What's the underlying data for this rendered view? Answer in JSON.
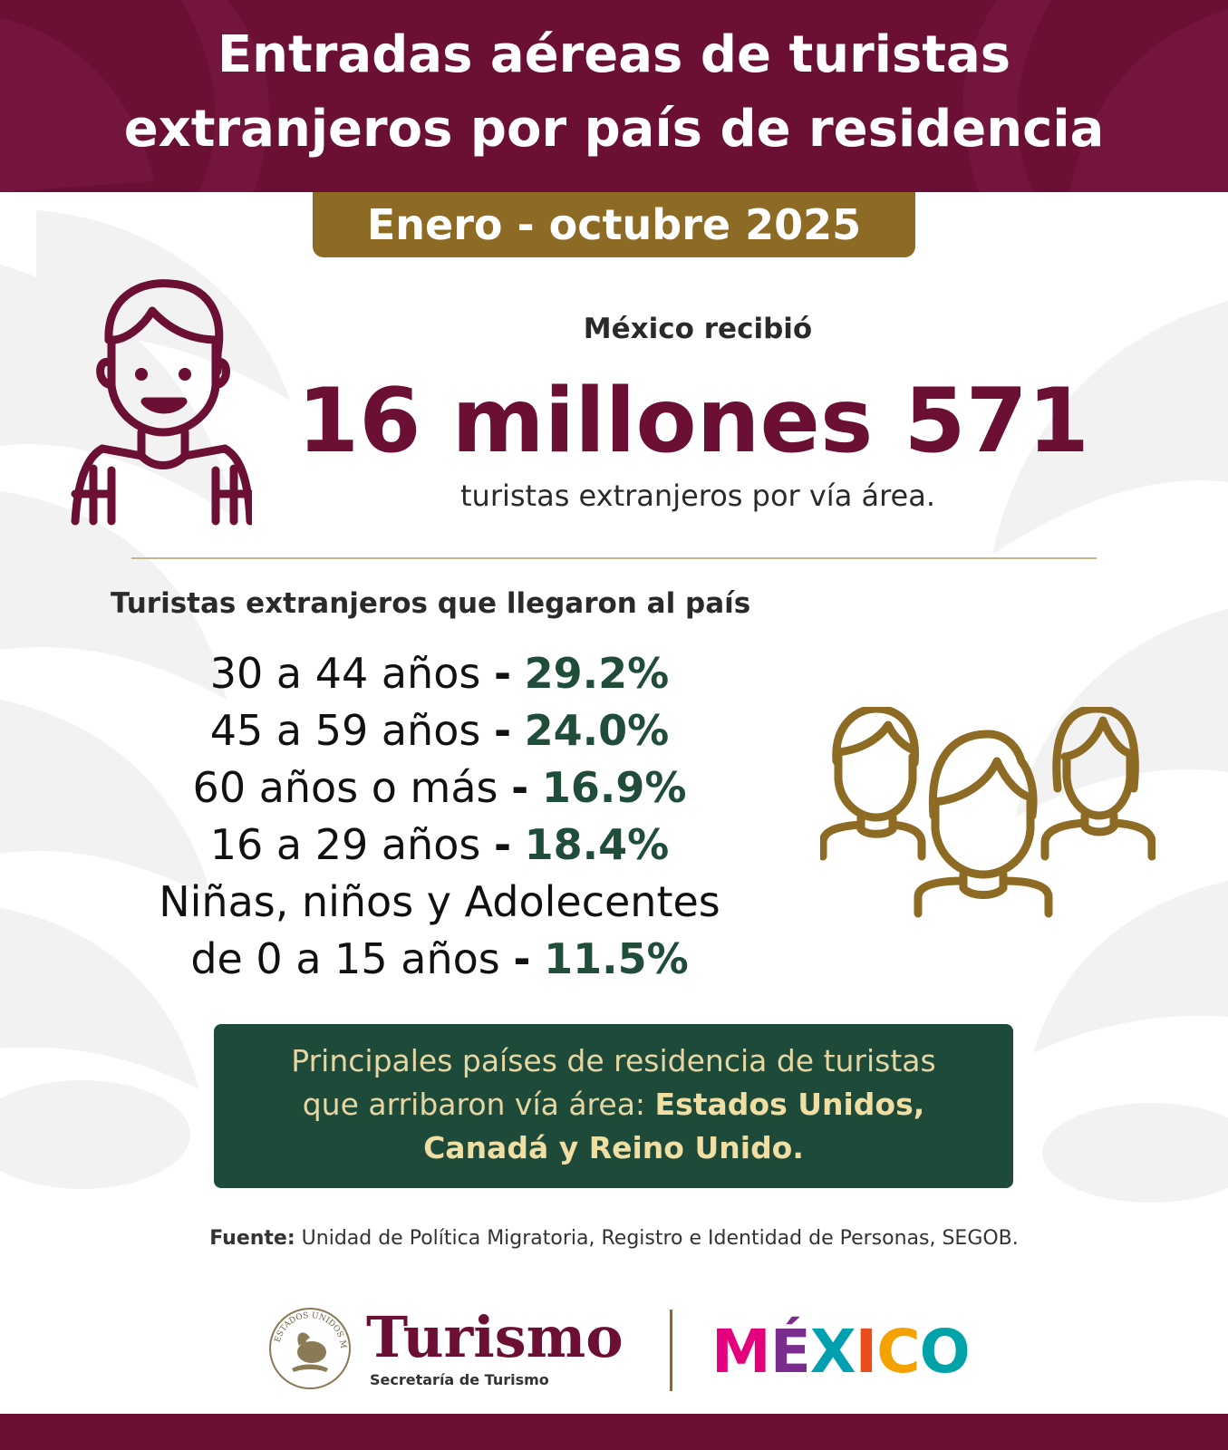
{
  "header": {
    "title_line1": "Entradas aéreas de turistas",
    "title_line2": "extranjeros por país de residencia",
    "period": "Enero - octubre 2025"
  },
  "summary": {
    "intro": "México recibió",
    "big_number": "16 millones 571",
    "subtext": "turistas extranjeros por vía área."
  },
  "ages": {
    "heading": "Turistas extranjeros que llegaron al país",
    "separator": "-",
    "rows": [
      {
        "label": "30 a 44 años",
        "pct": "29.2%"
      },
      {
        "label": "45 a 59 años",
        "pct": "24.0%"
      },
      {
        "label": "60 años o más",
        "pct": "16.9%"
      },
      {
        "label": "16 a 29 años",
        "pct": "18.4%"
      }
    ],
    "last_row": {
      "label_line1": "Niñas, niños y Adolecentes",
      "label_line2": "de 0 a 15 años",
      "pct": "11.5%"
    }
  },
  "countries": {
    "line1": "Principales países de residencia de turistas",
    "line2_prefix": "que arribaron vía área:",
    "line2_bold": "Estados Unidos,",
    "line3_bold": "Canadá y Reino Unido."
  },
  "source": {
    "label": "Fuente:",
    "text": "Unidad de Política Migratoria, Registro e Identidad de Personas, SEGOB."
  },
  "footer": {
    "seal_text": "ESTADOS UNIDOS MEXICANOS",
    "brand": "Turismo",
    "brand_sub": "Secretaría de Turismo",
    "mexico_logo": [
      "M",
      "É",
      "X",
      "I",
      "C",
      "O"
    ],
    "mexico_colors": [
      "#e4007c",
      "#7b2c8f",
      "#00a0b0",
      "#e94e1b",
      "#f3a200",
      "#00a3a8"
    ]
  },
  "colors": {
    "maroon": "#6b0f35",
    "gold": "#8e6b24",
    "green_dark": "#1e4a3a",
    "pct_green": "#1f4d3a"
  },
  "icons": {
    "traveler": "traveler-icon",
    "group": "people-group-icon",
    "seal": "national-seal-icon"
  }
}
